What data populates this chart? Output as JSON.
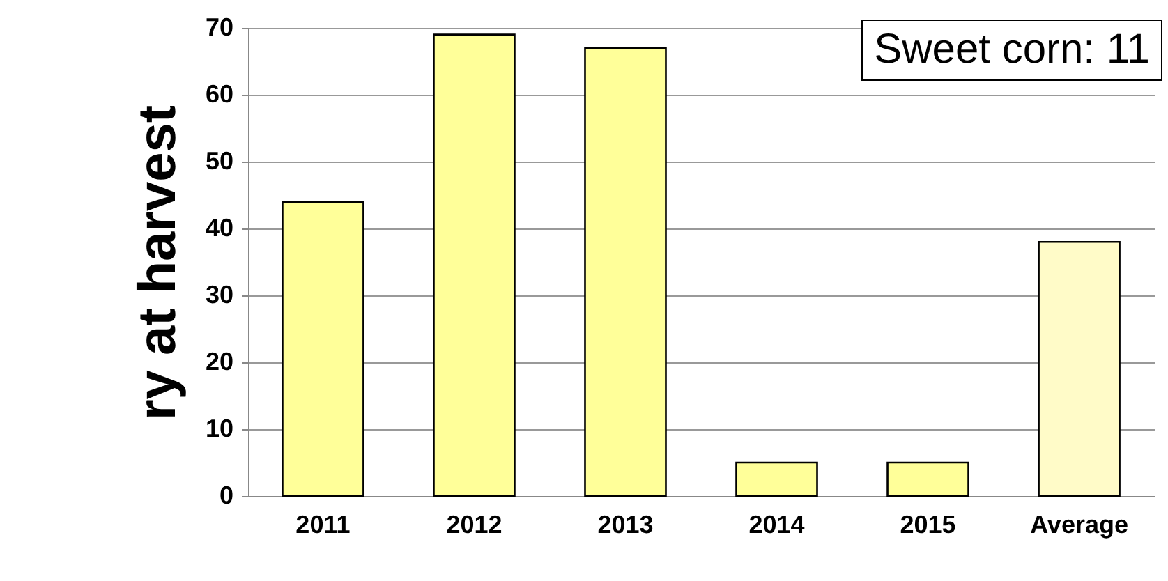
{
  "chart_data": {
    "type": "bar",
    "ylabel": "ry at harvest",
    "categories": [
      "2011",
      "2012",
      "2013",
      "2014",
      "2015",
      "Average"
    ],
    "values": [
      44,
      69,
      67,
      5,
      5,
      38
    ],
    "colors": [
      "#ffff99",
      "#ffff99",
      "#ffff99",
      "#ffff99",
      "#ffff99",
      "#fffbc8"
    ],
    "ylim": [
      0,
      70
    ],
    "yticks": [
      0,
      10,
      20,
      30,
      40,
      50,
      60,
      70
    ],
    "grid": "y",
    "annotations": [
      "Sweet corn: 11"
    ]
  }
}
